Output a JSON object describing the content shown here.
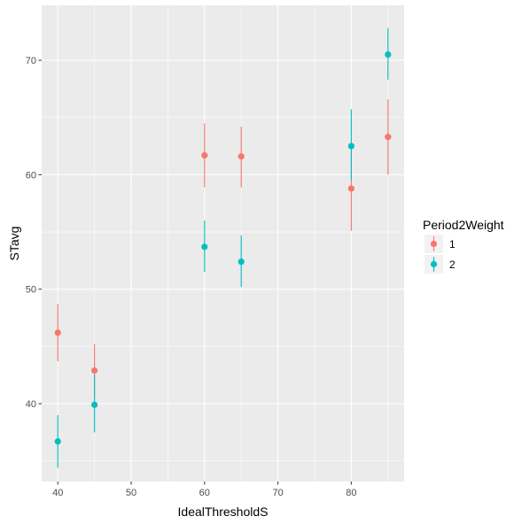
{
  "chart_data": {
    "type": "scatter",
    "xlabel": "IdealThresholdS",
    "ylabel": "STavg",
    "xlim": [
      37.8,
      87.2
    ],
    "ylim": [
      33.2,
      74.8
    ],
    "xticks": [
      40,
      50,
      60,
      70,
      80
    ],
    "yticks": [
      40,
      50,
      60,
      70
    ],
    "x_tick_labels": [
      "40",
      "50",
      "60",
      "70",
      "80"
    ],
    "y_tick_labels": [
      "40",
      "50",
      "60",
      "70"
    ],
    "grid": true,
    "legend": {
      "title": "Period2Weight",
      "position": "right"
    },
    "series": [
      {
        "name": "1",
        "color": "#F8766D",
        "x": [
          40,
          45,
          60,
          65,
          80,
          85
        ],
        "y": [
          46.2,
          42.9,
          61.7,
          61.6,
          58.8,
          63.3
        ],
        "ymin": [
          43.7,
          40.5,
          58.9,
          58.9,
          55.1,
          60.0
        ],
        "ymax": [
          48.7,
          45.2,
          64.5,
          64.2,
          62.6,
          66.6
        ]
      },
      {
        "name": "2",
        "color": "#00BFC4",
        "x": [
          40,
          45,
          60,
          65,
          80,
          85
        ],
        "y": [
          36.7,
          39.9,
          53.7,
          52.4,
          62.5,
          70.5
        ],
        "ymin": [
          34.4,
          37.5,
          51.5,
          50.2,
          59.5,
          68.3
        ],
        "ymax": [
          39.0,
          42.5,
          56.0,
          54.7,
          65.7,
          72.8
        ]
      }
    ]
  }
}
